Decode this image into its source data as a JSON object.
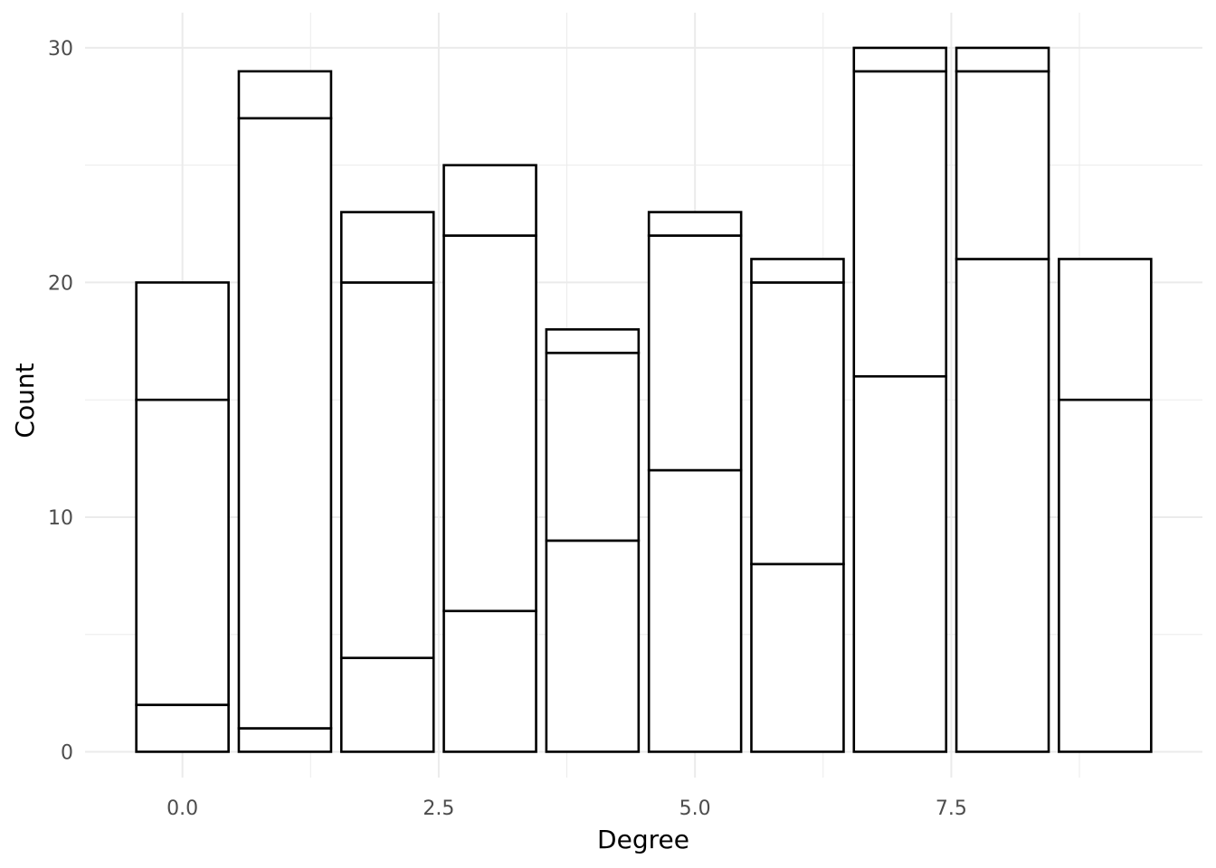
{
  "chart_data": {
    "type": "bar",
    "stacked": true,
    "xlabel": "Degree",
    "ylabel": "Count",
    "x": [
      0,
      1,
      2,
      3,
      4,
      5,
      6,
      7,
      8,
      9
    ],
    "stack_boundaries": [
      [
        2,
        15,
        20
      ],
      [
        1,
        27,
        29
      ],
      [
        4,
        20,
        23
      ],
      [
        6,
        22,
        25
      ],
      [
        9,
        17,
        18
      ],
      [
        12,
        22,
        23
      ],
      [
        8,
        20,
        21
      ],
      [
        16,
        29,
        30
      ],
      [
        21,
        29,
        30
      ],
      [
        15,
        21
      ]
    ],
    "totals": [
      20,
      29,
      23,
      25,
      18,
      23,
      21,
      30,
      30,
      21
    ],
    "xlim": [
      -0.95,
      9.95
    ],
    "ylim": [
      -1.1,
      31.5
    ],
    "x_ticks": [
      0.0,
      2.5,
      5.0,
      7.5
    ],
    "x_tick_labels": [
      "0.0",
      "2.5",
      "5.0",
      "7.5"
    ],
    "y_ticks": [
      0,
      10,
      20,
      30
    ],
    "y_tick_labels": [
      "0",
      "10",
      "20",
      "30"
    ],
    "bar_width": 0.9,
    "grid": true,
    "bar_fill": "#ffffff",
    "bar_outline": "#000000",
    "grid_color": "#ebebeb"
  }
}
